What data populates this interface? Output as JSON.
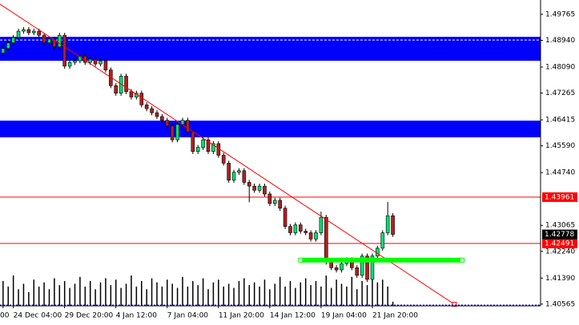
{
  "chart_data": {
    "type": "candlestick",
    "categories": [
      "00",
      null,
      "24 Dec 04:00",
      null,
      null,
      null,
      null,
      null,
      null,
      null,
      null,
      null,
      "29 Dec 20:00",
      null,
      null,
      null,
      null,
      null,
      null,
      null,
      null,
      null,
      "4 Jan 12:00",
      null,
      null,
      null,
      null,
      null,
      null,
      null,
      null,
      null,
      "7 Jan 04:00",
      null,
      null,
      null,
      null,
      null,
      null,
      null,
      null,
      null,
      "11 Jan 20:00",
      null,
      null,
      null,
      null,
      null,
      null,
      null,
      null,
      null,
      "14 Jan 12:00",
      null,
      null,
      null,
      null,
      null,
      null,
      null,
      null,
      null,
      "19 Jan 04:00",
      null,
      null,
      null,
      null,
      null,
      null,
      null,
      null,
      null,
      "21 Jan 20:00",
      null,
      null,
      null,
      null
    ],
    "open": [
      1.4854,
      1.4868,
      1.4886,
      1.4903,
      1.4923,
      1.4928,
      1.4918,
      1.4923,
      1.491,
      1.4886,
      1.4898,
      1.4873,
      1.491,
      1.4812,
      1.4824,
      1.4829,
      1.4844,
      1.4824,
      1.4834,
      1.4819,
      1.4829,
      1.48,
      1.475,
      1.4726,
      1.478,
      1.4731,
      1.4714,
      1.4726,
      1.4689,
      1.4677,
      1.4664,
      1.4652,
      1.464,
      1.4622,
      1.4578,
      1.4627,
      1.464,
      1.4603,
      1.4541,
      1.4554,
      1.4578,
      1.4541,
      1.4566,
      1.4529,
      1.4504,
      1.445,
      1.4475,
      1.448,
      1.4443,
      1.4431,
      1.4418,
      1.4431,
      1.4406,
      1.4376,
      1.4386,
      1.4361,
      1.4303,
      1.4283,
      1.4308,
      1.4288,
      1.4283,
      1.4263,
      1.4283,
      1.4332,
      1.419,
      1.4172,
      1.4165,
      1.4185,
      1.4197,
      1.4172,
      1.4148,
      1.4209,
      1.4135,
      1.4209,
      1.4234,
      1.4283,
      1.4337
    ],
    "high": [
      1.4876,
      1.4894,
      1.4911,
      1.4931,
      1.4936,
      1.4936,
      1.4931,
      1.4931,
      1.4918,
      1.4906,
      1.4906,
      1.4918,
      1.4918,
      1.4832,
      1.4837,
      1.4852,
      1.4852,
      1.4842,
      1.4842,
      1.4837,
      1.4837,
      1.4808,
      1.4758,
      1.4788,
      1.4788,
      1.4739,
      1.4734,
      1.4734,
      1.4697,
      1.4685,
      1.4672,
      1.466,
      1.4648,
      1.463,
      1.4635,
      1.4648,
      1.4648,
      1.4611,
      1.4562,
      1.4586,
      1.4586,
      1.4574,
      1.4574,
      1.4537,
      1.4512,
      1.4483,
      1.4488,
      1.4488,
      1.4451,
      1.4439,
      1.4439,
      1.4439,
      1.4414,
      1.4394,
      1.4394,
      1.4369,
      1.4311,
      1.4316,
      1.4316,
      1.4296,
      1.4291,
      1.4291,
      1.435,
      1.434,
      1.4198,
      1.418,
      1.4193,
      1.4205,
      1.4205,
      1.418,
      1.4217,
      1.4217,
      1.4217,
      1.4242,
      1.4291,
      1.4381,
      1.4345
    ],
    "low": [
      1.4846,
      1.486,
      1.4878,
      1.4895,
      1.4915,
      1.491,
      1.491,
      1.4902,
      1.4878,
      1.4878,
      1.4865,
      1.4865,
      1.4804,
      1.4804,
      1.4816,
      1.4821,
      1.4816,
      1.4816,
      1.4811,
      1.4811,
      1.4792,
      1.4742,
      1.4718,
      1.4718,
      1.4723,
      1.4706,
      1.4706,
      1.4681,
      1.4669,
      1.4656,
      1.4644,
      1.4632,
      1.4614,
      1.457,
      1.457,
      1.4619,
      1.4595,
      1.4533,
      1.4533,
      1.4546,
      1.4533,
      1.4533,
      1.4521,
      1.4496,
      1.4442,
      1.4442,
      1.4467,
      1.4435,
      1.438,
      1.441,
      1.441,
      1.4398,
      1.4368,
      1.4368,
      1.4353,
      1.4295,
      1.4275,
      1.4275,
      1.428,
      1.4275,
      1.4255,
      1.4255,
      1.4275,
      1.4182,
      1.4164,
      1.4157,
      1.4157,
      1.4177,
      1.4164,
      1.414,
      1.414,
      1.4127,
      1.4127,
      1.4201,
      1.4226,
      1.4275,
      1.427
    ],
    "close": [
      1.4868,
      1.4886,
      1.4903,
      1.4923,
      1.4928,
      1.4918,
      1.4923,
      1.491,
      1.4886,
      1.4898,
      1.4873,
      1.491,
      1.4812,
      1.4824,
      1.4829,
      1.4844,
      1.4824,
      1.4834,
      1.4819,
      1.4829,
      1.48,
      1.475,
      1.4726,
      1.478,
      1.4731,
      1.4714,
      1.4726,
      1.4689,
      1.4677,
      1.4664,
      1.4652,
      1.464,
      1.4622,
      1.4578,
      1.4627,
      1.464,
      1.4603,
      1.4541,
      1.4554,
      1.4578,
      1.4541,
      1.4566,
      1.4529,
      1.4504,
      1.445,
      1.4475,
      1.448,
      1.4443,
      1.4431,
      1.4418,
      1.4431,
      1.4406,
      1.4376,
      1.4386,
      1.4361,
      1.4303,
      1.4283,
      1.4308,
      1.4288,
      1.4283,
      1.4263,
      1.4283,
      1.4332,
      1.419,
      1.4172,
      1.4165,
      1.4185,
      1.4197,
      1.4172,
      1.4148,
      1.4209,
      1.4135,
      1.4209,
      1.4234,
      1.4283,
      1.4337,
      1.42778
    ],
    "volumes": [
      900,
      700,
      1100,
      600,
      800,
      500,
      950,
      700,
      850,
      600,
      1000,
      750,
      900,
      650,
      800,
      1050,
      700,
      900,
      600,
      850,
      1000,
      750,
      950,
      650,
      800,
      1100,
      700,
      900,
      600,
      1000,
      850,
      700,
      950,
      800,
      650,
      1050,
      700,
      900,
      750,
      1000,
      600,
      850,
      950,
      700,
      800,
      650,
      900,
      1000,
      750,
      850,
      700,
      950,
      600,
      800,
      1050,
      700,
      900,
      650,
      850,
      1000,
      750,
      900,
      700,
      1100,
      650,
      950,
      800,
      700,
      1050,
      600,
      900,
      750,
      1000,
      850,
      950,
      700,
      150
    ],
    "up_color": "#00e070",
    "down_color": "#b02020",
    "xlim": [
      -0.6,
      104.8
    ],
    "ylim": [
      1.4051,
      1.5022
    ],
    "yticks": [
      1.49765,
      {
        "value": 1.4894,
        "label": "1.48940"
      },
      {
        "value": 1.4809,
        "label": "1.48090"
      },
      1.47265,
      1.46415,
      {
        "value": 1.4559,
        "label": "1.45590"
      },
      {
        "value": 1.4474,
        "label": "1.44740"
      },
      1.43065,
      {
        "value": 1.4224,
        "label": "1.42240"
      },
      {
        "value": 1.4139,
        "label": "1.41390"
      },
      1.40565
    ],
    "bands": [
      {
        "from": 1.4829,
        "to": 1.4905,
        "color": "#0000ff"
      },
      {
        "from": 1.4586,
        "to": 1.4639,
        "color": "#0000ff"
      }
    ],
    "hlines": [
      {
        "value": 1.43961,
        "color": "#ff0000"
      },
      {
        "value": 1.42491,
        "color": "#ff0000"
      }
    ],
    "trendline": {
      "start": [
        -0.6,
        1.5009
      ],
      "end": [
        88,
        1.4056
      ],
      "color": "#ff0000"
    },
    "segment": {
      "start": [
        58,
        1.4196
      ],
      "end": [
        89.5,
        1.4196
      ],
      "color": "#00ff00"
    }
  }
}
